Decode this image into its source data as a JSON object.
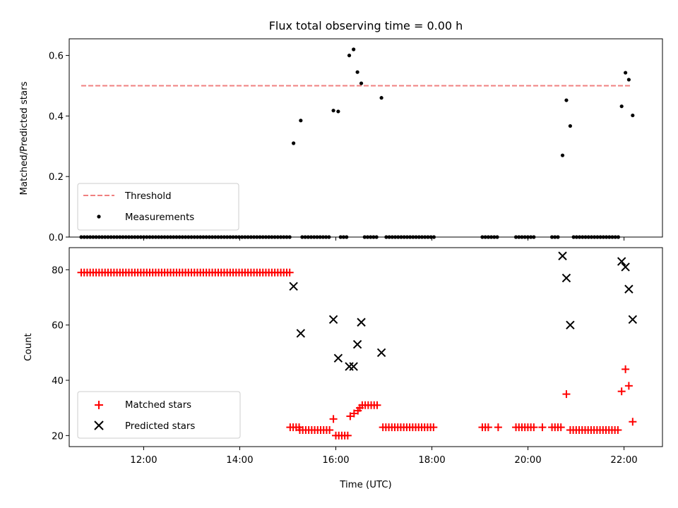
{
  "chart_data": [
    {
      "type": "scatter",
      "title": "Flux total observing time = 0.00 h",
      "ylabel": "Matched/Predicted stars",
      "xlabel": "",
      "xlim": [
        10.45,
        22.8
      ],
      "ylim": [
        0,
        0.655
      ],
      "yticks": [
        0,
        0.2,
        0.4,
        0.6
      ],
      "ytick_labels": [
        "0.0",
        "0.2",
        "0.4",
        "0.6"
      ],
      "grid": false,
      "legend_position": "lower-left",
      "threshold": {
        "name": "Threshold",
        "y": 0.5,
        "x": [
          10.7,
          22.15
        ],
        "color": "#f08080"
      },
      "series": [
        {
          "name": "Measurements",
          "color": "#000000",
          "points": [
            [
              15.12,
              0.31
            ],
            [
              15.27,
              0.385
            ],
            [
              15.95,
              0.418
            ],
            [
              16.05,
              0.415
            ],
            [
              16.28,
              0.6
            ],
            [
              16.37,
              0.62
            ],
            [
              16.45,
              0.545
            ],
            [
              16.53,
              0.508
            ],
            [
              16.95,
              0.46
            ],
            [
              20.72,
              0.27
            ],
            [
              20.8,
              0.452
            ],
            [
              20.88,
              0.367
            ],
            [
              21.95,
              0.432
            ],
            [
              22.03,
              0.543
            ],
            [
              22.1,
              0.52
            ],
            [
              22.18,
              0.402
            ]
          ],
          "zero_segments": [
            [
              10.7,
              15.05,
              0.062
            ],
            [
              15.3,
              15.9,
              0.062
            ],
            [
              16.1,
              16.25,
              0.062
            ],
            [
              16.6,
              16.9,
              0.062
            ],
            [
              17.05,
              18.05,
              0.062
            ],
            [
              19.05,
              19.4,
              0.062
            ],
            [
              19.75,
              20.15,
              0.062
            ],
            [
              20.5,
              20.65,
              0.062
            ],
            [
              20.95,
              21.9,
              0.062
            ]
          ]
        }
      ]
    },
    {
      "type": "scatter",
      "title": "",
      "ylabel": "Count",
      "xlabel": "Time (UTC)",
      "xlim": [
        10.45,
        22.8
      ],
      "ylim": [
        16,
        88
      ],
      "yticks": [
        20,
        40,
        60,
        80
      ],
      "ytick_labels": [
        "20",
        "40",
        "60",
        "80"
      ],
      "xticks": [
        12,
        14,
        16,
        18,
        20,
        22
      ],
      "xtick_labels": [
        "12:00",
        "14:00",
        "16:00",
        "18:00",
        "20:00",
        "22:00"
      ],
      "grid": false,
      "legend_position": "lower-left",
      "series": [
        {
          "name": "Matched stars",
          "marker": "plus",
          "color": "#ff0000",
          "runs": [
            [
              10.7,
              15.05,
              0.062,
              79
            ],
            [
              15.05,
              15.25,
              0.062,
              23
            ],
            [
              15.25,
              15.9,
              0.062,
              22
            ],
            [
              16.0,
              16.25,
              0.062,
              20
            ],
            [
              16.55,
              16.9,
              0.062,
              31
            ],
            [
              16.98,
              18.05,
              0.062,
              23
            ],
            [
              19.05,
              19.2,
              0.062,
              23
            ],
            [
              19.75,
              20.15,
              0.062,
              23
            ],
            [
              20.5,
              20.7,
              0.062,
              23
            ],
            [
              20.88,
              21.9,
              0.062,
              22
            ]
          ],
          "points": [
            [
              15.95,
              26
            ],
            [
              16.3,
              27
            ],
            [
              16.38,
              28
            ],
            [
              16.46,
              29
            ],
            [
              16.5,
              30
            ],
            [
              19.38,
              23
            ],
            [
              20.3,
              23
            ],
            [
              20.8,
              35
            ],
            [
              21.95,
              36
            ],
            [
              22.03,
              44
            ],
            [
              22.1,
              38
            ],
            [
              22.18,
              25
            ]
          ]
        },
        {
          "name": "Predicted stars",
          "marker": "x",
          "color": "#000000",
          "points": [
            [
              15.12,
              74
            ],
            [
              15.27,
              57
            ],
            [
              15.95,
              62
            ],
            [
              16.05,
              48
            ],
            [
              16.28,
              45
            ],
            [
              16.37,
              45
            ],
            [
              16.45,
              53
            ],
            [
              16.53,
              61
            ],
            [
              16.95,
              50
            ],
            [
              20.72,
              85
            ],
            [
              20.8,
              77
            ],
            [
              20.88,
              60
            ],
            [
              21.95,
              83
            ],
            [
              22.03,
              81
            ],
            [
              22.1,
              73
            ],
            [
              22.18,
              62
            ]
          ]
        }
      ]
    }
  ]
}
